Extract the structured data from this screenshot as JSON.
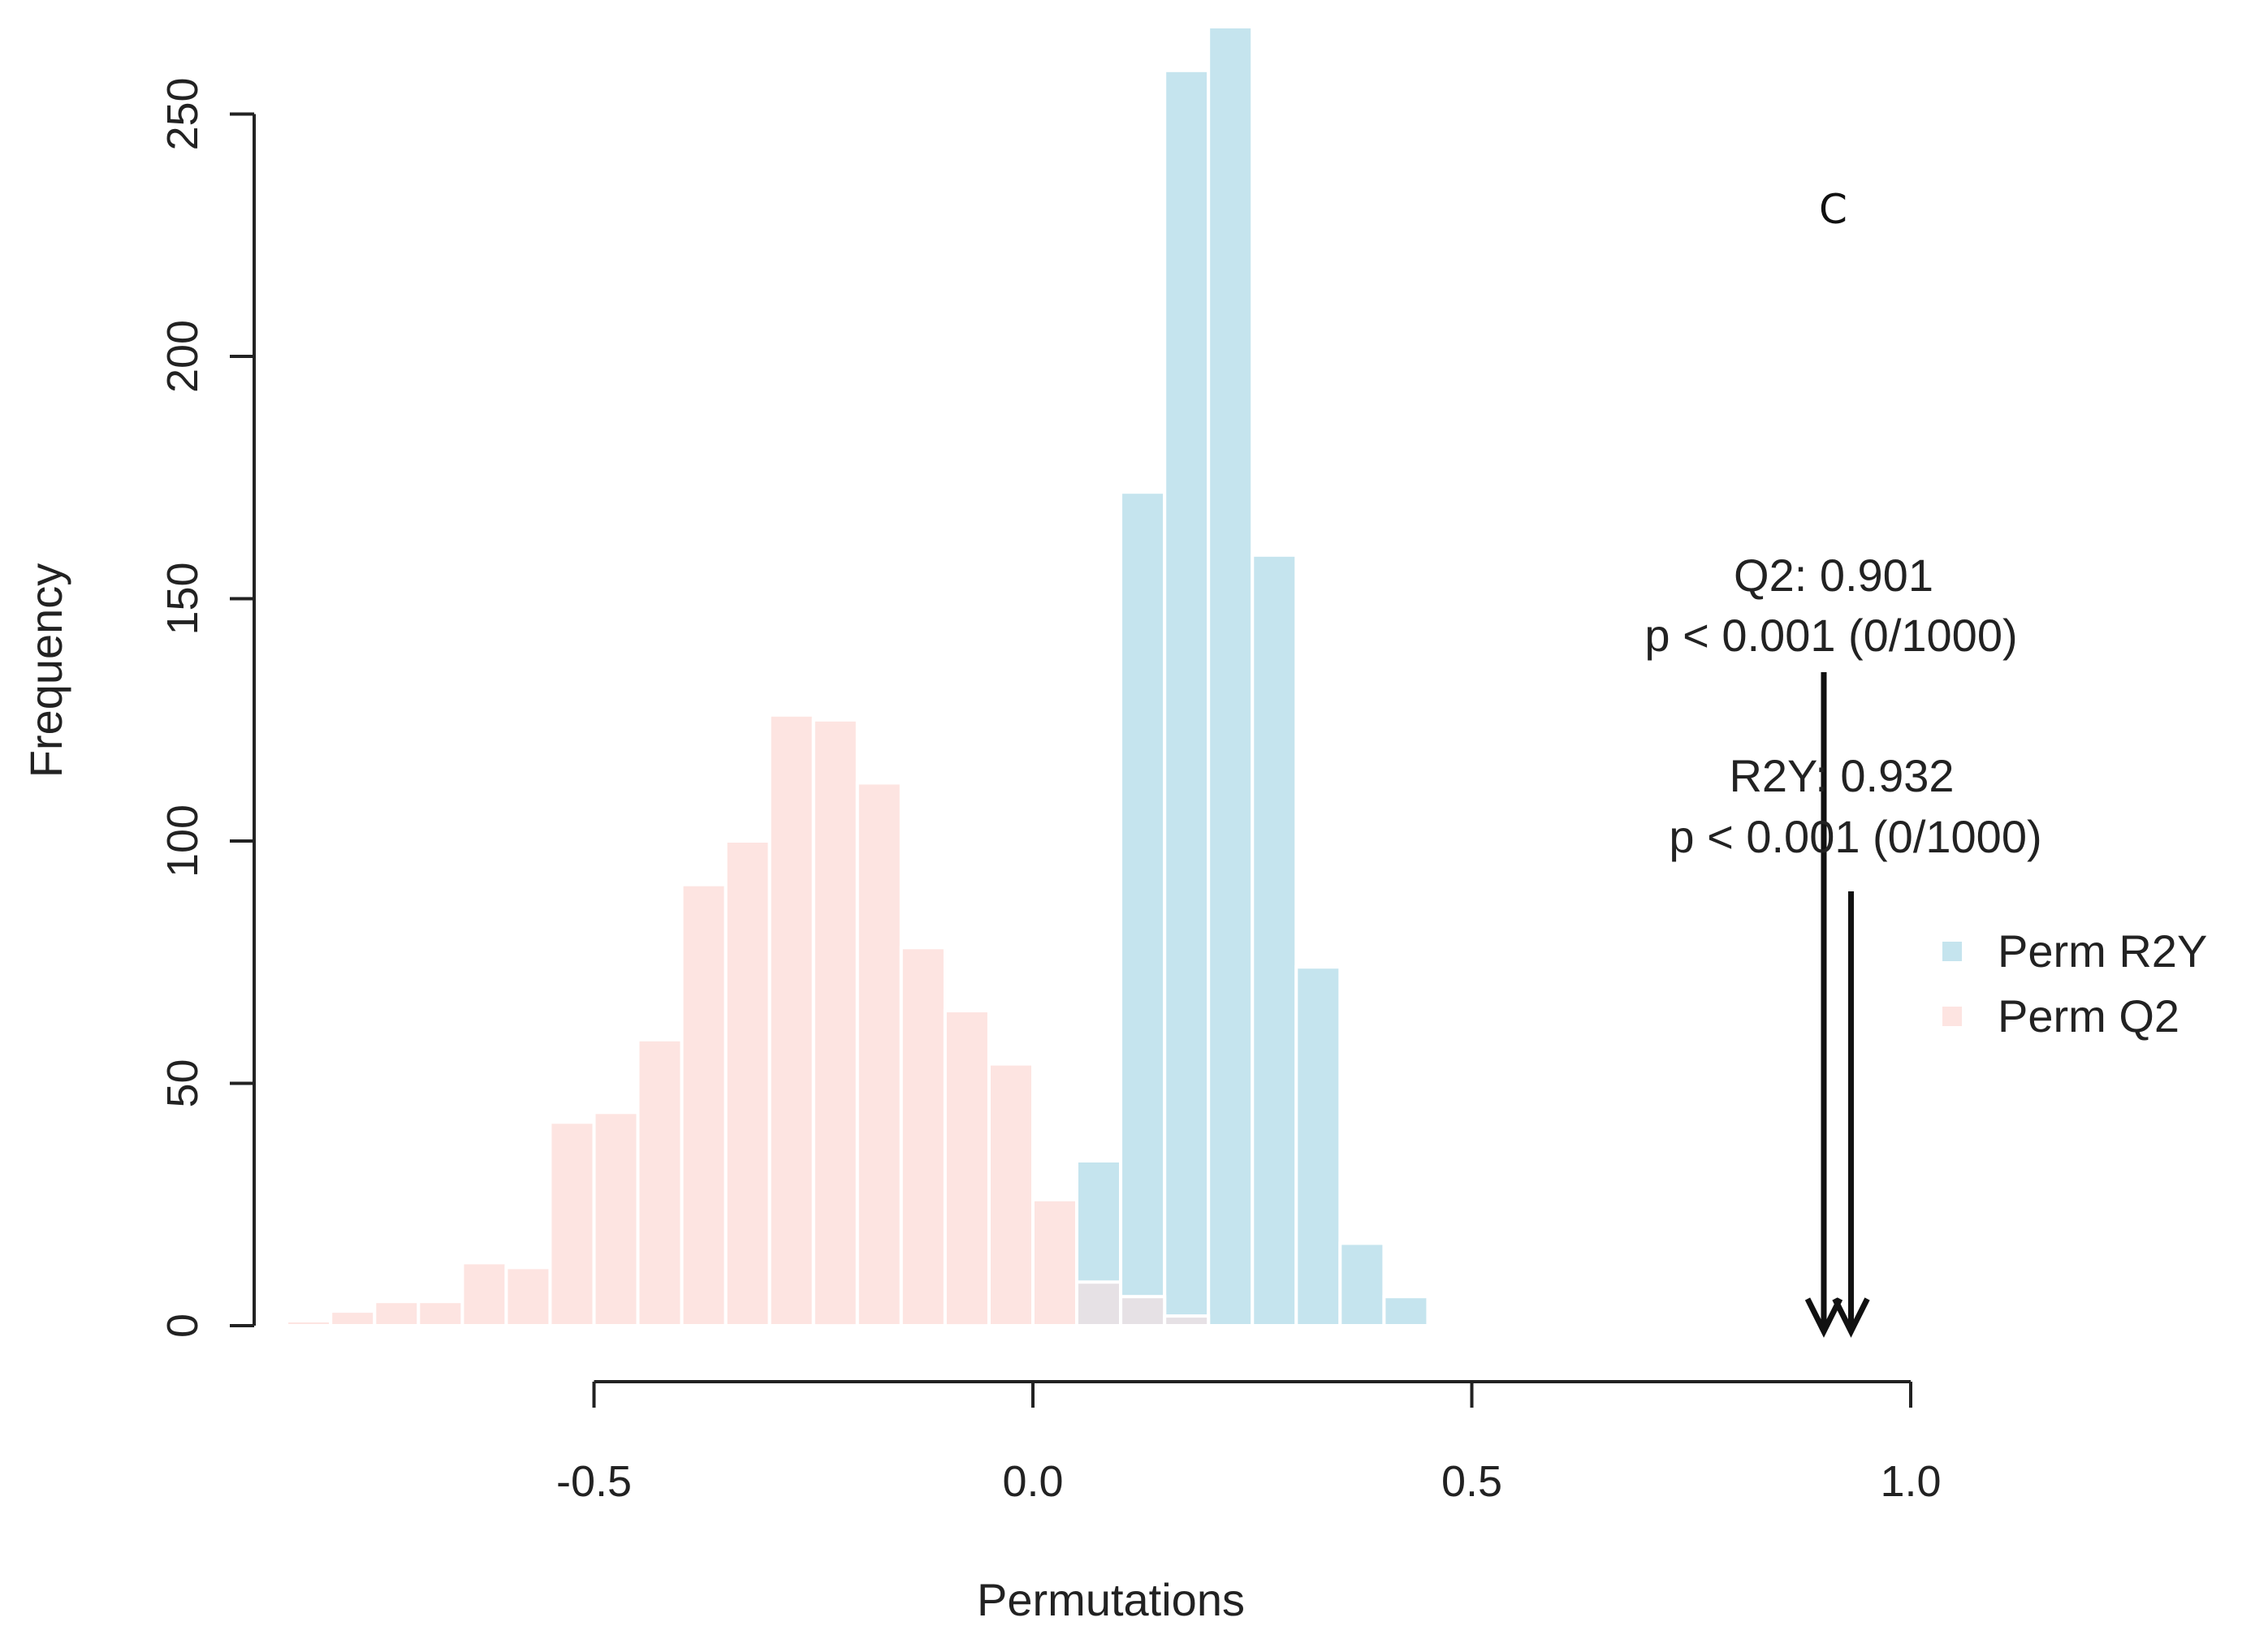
{
  "chart_data": {
    "type": "bar",
    "panel_label": "C",
    "xlabel": "Permutations",
    "ylabel": "Frequency",
    "xlim": [
      -0.9,
      1.0
    ],
    "ylim": [
      0,
      268
    ],
    "x_ticks": [
      -0.5,
      0.0,
      0.5,
      1.0
    ],
    "x_tick_labels": [
      "-0.5",
      "0.0",
      "0.5",
      "1.0"
    ],
    "y_ticks": [
      0,
      50,
      100,
      150,
      200,
      250
    ],
    "y_tick_labels": [
      "0",
      "50",
      "100",
      "150",
      "200",
      "250"
    ],
    "bin_width": 0.05,
    "series": [
      {
        "name": "Perm Q2",
        "legend_label": "Perm Q2",
        "color": "#fde4e1",
        "bins_start": [
          -0.85,
          -0.8,
          -0.75,
          -0.7,
          -0.65,
          -0.6,
          -0.55,
          -0.5,
          -0.45,
          -0.4,
          -0.35,
          -0.3,
          -0.25,
          -0.2,
          -0.15,
          -0.1,
          -0.05,
          0.0,
          0.05,
          0.1,
          0.15
        ],
        "values": [
          1,
          3,
          5,
          5,
          13,
          12,
          42,
          44,
          59,
          91,
          100,
          126,
          125,
          112,
          78,
          65,
          54,
          26,
          9,
          6,
          2
        ]
      },
      {
        "name": "Perm R2Y",
        "legend_label": "Perm R2Y",
        "color": "#c5e4ee",
        "bins_start": [
          0.05,
          0.1,
          0.15,
          0.2,
          0.25,
          0.3,
          0.35,
          0.4
        ],
        "values": [
          34,
          172,
          259,
          268,
          159,
          74,
          17,
          6
        ]
      }
    ],
    "overlap_color": "#e6e1e5",
    "annotations": [
      {
        "id": "q2",
        "x": 0.901,
        "line1": "Q2: 0.901",
        "line2": "p < 0.001 (0/1000)"
      },
      {
        "id": "r2y",
        "x": 0.932,
        "line1": "R2Y: 0.932",
        "line2": "p < 0.001 (0/1000)"
      }
    ],
    "legend_position": "right"
  }
}
